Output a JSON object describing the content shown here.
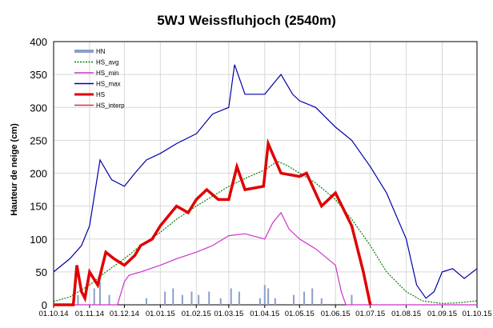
{
  "chart_data": {
    "type": "line",
    "title": "5WJ Weissfluhjoch (2540m)",
    "ylabel": "Hauteur de neige (cm)",
    "xlabel": "",
    "ylim": [
      0,
      400
    ],
    "yticks": [
      0,
      50,
      100,
      150,
      200,
      250,
      300,
      350,
      400
    ],
    "xlim": [
      "2014-10-01",
      "2015-10-01"
    ],
    "xtick_labels": [
      "01.10.14",
      "01.11.14",
      "01.12.14",
      "01.01.15",
      "01.02.15",
      "01.03.15",
      "01.04.15",
      "01.05.15",
      "01.06.15",
      "01.07.15",
      "01.08.15",
      "01.09.15",
      "01.10.15"
    ],
    "xtick_dates": [
      "2014-10-01",
      "2014-11-01",
      "2014-12-01",
      "2015-01-01",
      "2015-02-01",
      "2015-03-01",
      "2015-04-01",
      "2015-05-01",
      "2015-06-01",
      "2015-07-01",
      "2015-08-01",
      "2015-09-01",
      "2015-10-01"
    ],
    "grid": true,
    "legend_placement": "top-left",
    "series": [
      {
        "name": "HN",
        "kind": "bar",
        "color": "#8aa0c8",
        "points": [
          [
            "2014-10-22",
            15
          ],
          [
            "2014-11-05",
            25
          ],
          [
            "2014-11-10",
            35
          ],
          [
            "2014-11-18",
            15
          ],
          [
            "2014-12-20",
            10
          ],
          [
            "2015-01-05",
            20
          ],
          [
            "2015-01-12",
            25
          ],
          [
            "2015-01-20",
            15
          ],
          [
            "2015-01-28",
            20
          ],
          [
            "2015-02-03",
            15
          ],
          [
            "2015-02-12",
            20
          ],
          [
            "2015-02-22",
            10
          ],
          [
            "2015-03-03",
            25
          ],
          [
            "2015-03-10",
            20
          ],
          [
            "2015-03-28",
            10
          ],
          [
            "2015-04-01",
            30
          ],
          [
            "2015-04-04",
            25
          ],
          [
            "2015-04-10",
            10
          ],
          [
            "2015-04-26",
            15
          ],
          [
            "2015-05-05",
            20
          ],
          [
            "2015-05-12",
            25
          ],
          [
            "2015-05-20",
            10
          ],
          [
            "2015-06-15",
            15
          ]
        ]
      },
      {
        "name": "HS_avg",
        "kind": "dashed",
        "color": "#008000",
        "points": [
          [
            "2014-10-01",
            5
          ],
          [
            "2014-10-15",
            12
          ],
          [
            "2014-11-01",
            30
          ],
          [
            "2014-11-15",
            50
          ],
          [
            "2014-12-01",
            70
          ],
          [
            "2014-12-15",
            90
          ],
          [
            "2015-01-01",
            110
          ],
          [
            "2015-01-15",
            130
          ],
          [
            "2015-02-01",
            150
          ],
          [
            "2015-02-15",
            165
          ],
          [
            "2015-03-01",
            180
          ],
          [
            "2015-03-15",
            192
          ],
          [
            "2015-04-01",
            205
          ],
          [
            "2015-04-12",
            218
          ],
          [
            "2015-04-20",
            212
          ],
          [
            "2015-05-01",
            200
          ],
          [
            "2015-05-15",
            185
          ],
          [
            "2015-06-01",
            160
          ],
          [
            "2015-06-15",
            130
          ],
          [
            "2015-07-01",
            90
          ],
          [
            "2015-07-15",
            50
          ],
          [
            "2015-08-01",
            20
          ],
          [
            "2015-08-15",
            6
          ],
          [
            "2015-09-01",
            2
          ],
          [
            "2015-09-15",
            3
          ],
          [
            "2015-10-01",
            6
          ]
        ]
      },
      {
        "name": "HS_min",
        "kind": "line",
        "color": "#cc33cc",
        "points": [
          [
            "2014-10-01",
            0
          ],
          [
            "2014-11-25",
            0
          ],
          [
            "2014-12-01",
            35
          ],
          [
            "2014-12-05",
            45
          ],
          [
            "2014-12-15",
            50
          ],
          [
            "2015-01-01",
            60
          ],
          [
            "2015-01-15",
            70
          ],
          [
            "2015-02-01",
            80
          ],
          [
            "2015-02-15",
            90
          ],
          [
            "2015-03-01",
            105
          ],
          [
            "2015-03-15",
            108
          ],
          [
            "2015-04-01",
            100
          ],
          [
            "2015-04-08",
            125
          ],
          [
            "2015-04-15",
            140
          ],
          [
            "2015-04-22",
            115
          ],
          [
            "2015-05-01",
            100
          ],
          [
            "2015-05-15",
            85
          ],
          [
            "2015-06-01",
            60
          ],
          [
            "2015-06-06",
            20
          ],
          [
            "2015-06-10",
            0
          ],
          [
            "2015-10-01",
            0
          ]
        ]
      },
      {
        "name": "HS_max",
        "kind": "line",
        "color": "#0000aa",
        "points": [
          [
            "2014-10-01",
            50
          ],
          [
            "2014-10-15",
            70
          ],
          [
            "2014-10-25",
            90
          ],
          [
            "2014-11-01",
            120
          ],
          [
            "2014-11-10",
            220
          ],
          [
            "2014-11-20",
            190
          ],
          [
            "2014-12-01",
            180
          ],
          [
            "2014-12-10",
            200
          ],
          [
            "2014-12-20",
            220
          ],
          [
            "2015-01-01",
            230
          ],
          [
            "2015-01-15",
            245
          ],
          [
            "2015-02-01",
            260
          ],
          [
            "2015-02-15",
            290
          ],
          [
            "2015-03-01",
            300
          ],
          [
            "2015-03-06",
            365
          ],
          [
            "2015-03-15",
            320
          ],
          [
            "2015-04-01",
            320
          ],
          [
            "2015-04-15",
            350
          ],
          [
            "2015-04-25",
            320
          ],
          [
            "2015-05-01",
            310
          ],
          [
            "2015-05-15",
            300
          ],
          [
            "2015-06-01",
            270
          ],
          [
            "2015-06-15",
            250
          ],
          [
            "2015-07-01",
            210
          ],
          [
            "2015-07-15",
            170
          ],
          [
            "2015-08-01",
            100
          ],
          [
            "2015-08-10",
            30
          ],
          [
            "2015-08-18",
            10
          ],
          [
            "2015-08-25",
            20
          ],
          [
            "2015-09-01",
            50
          ],
          [
            "2015-09-10",
            55
          ],
          [
            "2015-09-20",
            40
          ],
          [
            "2015-10-01",
            55
          ]
        ]
      },
      {
        "name": "HS",
        "kind": "bold",
        "color": "#e00000",
        "points": [
          [
            "2014-10-01",
            0
          ],
          [
            "2014-10-18",
            0
          ],
          [
            "2014-10-21",
            60
          ],
          [
            "2014-10-25",
            20
          ],
          [
            "2014-10-28",
            10
          ],
          [
            "2014-11-01",
            50
          ],
          [
            "2014-11-08",
            30
          ],
          [
            "2014-11-15",
            80
          ],
          [
            "2014-11-22",
            70
          ],
          [
            "2014-12-01",
            60
          ],
          [
            "2014-12-10",
            75
          ],
          [
            "2014-12-15",
            90
          ],
          [
            "2014-12-25",
            100
          ],
          [
            "2015-01-01",
            120
          ],
          [
            "2015-01-15",
            150
          ],
          [
            "2015-01-25",
            140
          ],
          [
            "2015-02-01",
            160
          ],
          [
            "2015-02-10",
            175
          ],
          [
            "2015-02-20",
            160
          ],
          [
            "2015-03-01",
            160
          ],
          [
            "2015-03-08",
            210
          ],
          [
            "2015-03-15",
            175
          ],
          [
            "2015-03-31",
            180
          ],
          [
            "2015-04-04",
            245
          ],
          [
            "2015-04-15",
            200
          ],
          [
            "2015-05-01",
            195
          ],
          [
            "2015-05-07",
            200
          ],
          [
            "2015-05-20",
            150
          ],
          [
            "2015-06-01",
            170
          ],
          [
            "2015-06-15",
            120
          ],
          [
            "2015-06-25",
            50
          ],
          [
            "2015-07-01",
            0
          ]
        ]
      },
      {
        "name": "HS_interp",
        "kind": "line",
        "color": "#e03030",
        "points": []
      }
    ]
  }
}
